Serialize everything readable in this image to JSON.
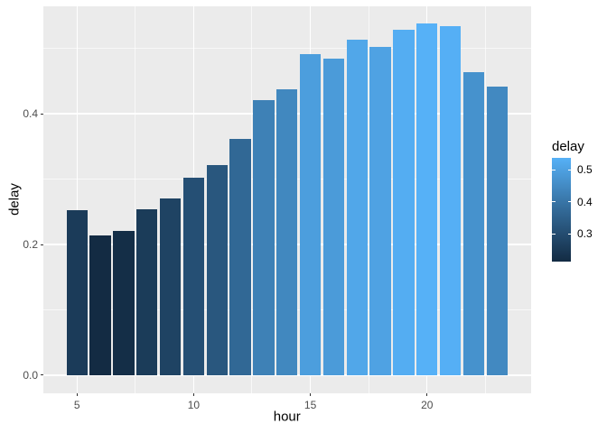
{
  "chart_data": {
    "type": "bar",
    "title": "",
    "xlabel": "hour",
    "ylabel": "delay",
    "x": [
      5,
      6,
      7,
      8,
      9,
      10,
      11,
      12,
      13,
      14,
      15,
      16,
      17,
      18,
      19,
      20,
      21,
      22,
      23
    ],
    "values": [
      0.253,
      0.214,
      0.221,
      0.254,
      0.271,
      0.302,
      0.321,
      0.361,
      0.421,
      0.438,
      0.491,
      0.484,
      0.513,
      0.502,
      0.529,
      0.538,
      0.534,
      0.463,
      0.441
    ],
    "bar_colors": [
      "#1B3B59",
      "#132B43",
      "#142E47",
      "#1B3C59",
      "#1F4363",
      "#254F74",
      "#29577E",
      "#316895",
      "#3E81B6",
      "#4188BF",
      "#4C9EDD",
      "#4B9BD9",
      "#51A7E9",
      "#4FA2E3",
      "#54ADF2",
      "#56B1F7",
      "#55AFF5",
      "#4692CD",
      "#4289C1"
    ],
    "bar_width": 0.9,
    "x_domain": [
      3.56,
      24.44
    ],
    "y_domain": [
      -0.027,
      0.565
    ],
    "x_ticks": [
      {
        "value": 5,
        "label": "5"
      },
      {
        "value": 10,
        "label": "10"
      },
      {
        "value": 15,
        "label": "15"
      },
      {
        "value": 20,
        "label": "20"
      }
    ],
    "x_minor": [
      7.5,
      12.5,
      17.5,
      22.5
    ],
    "y_ticks": [
      {
        "value": 0.0,
        "label": "0.0"
      },
      {
        "value": 0.2,
        "label": "0.2"
      },
      {
        "value": 0.4,
        "label": "0.4"
      }
    ],
    "y_minor": [
      0.1,
      0.3,
      0.5
    ],
    "grid": "on",
    "legend": {
      "title": "delay",
      "position": "right",
      "domain": [
        0.214,
        0.538
      ],
      "gradient_top": "#56B1F7",
      "gradient_mid": "#336A98",
      "gradient_bottom": "#132B43",
      "ticks": [
        {
          "value": 0.5,
          "label": "0.5"
        },
        {
          "value": 0.4,
          "label": "0.4"
        },
        {
          "value": 0.3,
          "label": "0.3"
        }
      ]
    },
    "theme": {
      "figure_bg": "#FFFFFF",
      "panel_bg": "#EBEBEB",
      "grid_color": "#FFFFFF",
      "axis_text_color": "#4D4D4D",
      "title_color": "#000000",
      "tick_mark_color": "#333333"
    }
  }
}
